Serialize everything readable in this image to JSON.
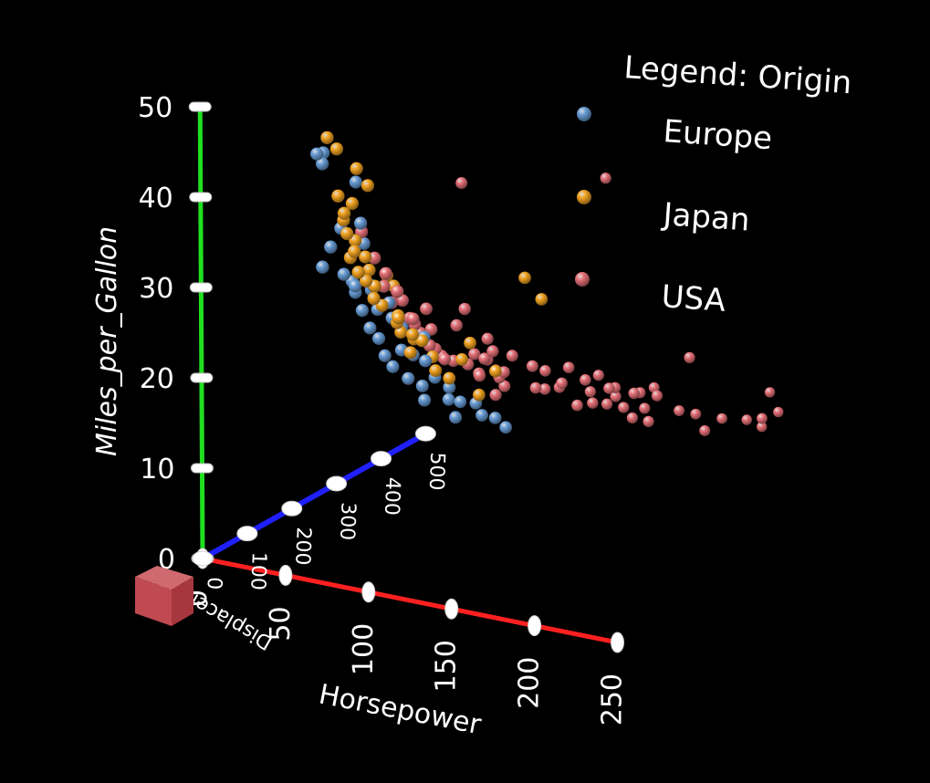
{
  "chart_data": {
    "type": "scatter",
    "dimensions": 3,
    "axes": {
      "x": {
        "label": "Horsepower",
        "range": [
          0,
          250
        ],
        "ticks": [
          "0",
          "50",
          "100",
          "150",
          "200",
          "250"
        ],
        "color": "#ff2020"
      },
      "y": {
        "label": "Miles_per_Gallon",
        "range": [
          0,
          50
        ],
        "ticks": [
          "0",
          "10",
          "20",
          "30",
          "40",
          "50"
        ],
        "color": "#20e020"
      },
      "z": {
        "label": "Displacement",
        "range": [
          0,
          500
        ],
        "ticks": [
          "0",
          "100",
          "200",
          "300",
          "400",
          "500"
        ],
        "color": "#2020ff"
      }
    },
    "legend": {
      "title": "Legend: Origin",
      "placement": "top-right",
      "entries": [
        {
          "name": "Europe",
          "color": "#6a9fd8"
        },
        {
          "name": "Japan",
          "color": "#f5a623"
        },
        {
          "name": "USA",
          "color": "#e8737a"
        }
      ]
    },
    "series": [
      {
        "name": "Europe",
        "points": [
          [
            46,
            44,
            90
          ],
          [
            49,
            43,
            91
          ],
          [
            48,
            44,
            97
          ],
          [
            52,
            32,
            79
          ],
          [
            54,
            34,
            90
          ],
          [
            58,
            36,
            98
          ],
          [
            60,
            31,
            97
          ],
          [
            62,
            30,
            108
          ],
          [
            65,
            29,
            104
          ],
          [
            67,
            30,
            96
          ],
          [
            68,
            27,
            108
          ],
          [
            70,
            29,
            121
          ],
          [
            71,
            25,
            114
          ],
          [
            74,
            27,
            120
          ],
          [
            76,
            24,
            115
          ],
          [
            78,
            22,
            121
          ],
          [
            80,
            26,
            130
          ],
          [
            83,
            21,
            120
          ],
          [
            85,
            25,
            134
          ],
          [
            88,
            23,
            121
          ],
          [
            90,
            22,
            140
          ],
          [
            92,
            20,
            121
          ],
          [
            95,
            24,
            146
          ],
          [
            97,
            19,
            134
          ],
          [
            100,
            22,
            130
          ],
          [
            102,
            18,
            120
          ],
          [
            103,
            20,
            140
          ],
          [
            105,
            17,
            163
          ],
          [
            110,
            19,
            146
          ],
          [
            112,
            17,
            163
          ],
          [
            115,
            16,
            141
          ],
          [
            120,
            17,
            168
          ],
          [
            125,
            16,
            163
          ],
          [
            133,
            16,
            163
          ],
          [
            138,
            15,
            168
          ],
          [
            64,
            41,
            110
          ],
          [
            70,
            37,
            98
          ],
          [
            66,
            34,
            120
          ],
          [
            75,
            30,
            107
          ],
          [
            81,
            28,
            120
          ]
        ]
      },
      {
        "name": "Japan",
        "points": [
          [
            52,
            46,
            91
          ],
          [
            58,
            45,
            90
          ],
          [
            60,
            40,
            85
          ],
          [
            62,
            38,
            91
          ],
          [
            65,
            39,
            98
          ],
          [
            65,
            36,
            86
          ],
          [
            67,
            35,
            97
          ],
          [
            68,
            34,
            91
          ],
          [
            70,
            33,
            108
          ],
          [
            72,
            32,
            85
          ],
          [
            75,
            31,
            91
          ],
          [
            75,
            32,
            98
          ],
          [
            76,
            30,
            107
          ],
          [
            78,
            29,
            97
          ],
          [
            80,
            28,
            108
          ],
          [
            84,
            30,
            119
          ],
          [
            88,
            27,
            114
          ],
          [
            88,
            25,
            120
          ],
          [
            90,
            27,
            107
          ],
          [
            92,
            24,
            134
          ],
          [
            94,
            23,
            119
          ],
          [
            95,
            25,
            120
          ],
          [
            97,
            24,
            134
          ],
          [
            100,
            22,
            146
          ],
          [
            105,
            21,
            134
          ],
          [
            110,
            20,
            146
          ],
          [
            115,
            22,
            156
          ],
          [
            120,
            24,
            156
          ],
          [
            122,
            18,
            168
          ],
          [
            132,
            21,
            168
          ],
          [
            68,
            43,
            97
          ],
          [
            72,
            41,
            107
          ],
          [
            60,
            37,
            97
          ],
          [
            64,
            33,
            97
          ],
          [
            80,
            31,
            119
          ],
          [
            86,
            26,
            119
          ],
          [
            150,
            32,
            168
          ],
          [
            160,
            30,
            168
          ]
        ]
      },
      {
        "name": "USA",
        "points": [
          [
            70,
            36,
            100
          ],
          [
            75,
            33,
            110
          ],
          [
            80,
            30,
            112
          ],
          [
            82,
            28,
            122
          ],
          [
            85,
            28,
            135
          ],
          [
            88,
            26,
            140
          ],
          [
            88,
            25,
            151
          ],
          [
            90,
            24,
            156
          ],
          [
            90,
            26,
            140
          ],
          [
            92,
            24,
            173
          ],
          [
            95,
            22,
            171
          ],
          [
            96,
            21,
            181
          ],
          [
            97,
            23,
            151
          ],
          [
            98,
            20,
            200
          ],
          [
            100,
            21,
            173
          ],
          [
            100,
            19,
            225
          ],
          [
            102,
            20,
            232
          ],
          [
            105,
            19,
            250
          ],
          [
            105,
            18,
            231
          ],
          [
            107,
            18,
            225
          ],
          [
            110,
            18,
            250
          ],
          [
            110,
            17,
            258
          ],
          [
            112,
            16,
            262
          ],
          [
            115,
            16,
            231
          ],
          [
            115,
            18,
            250
          ],
          [
            120,
            15,
            302
          ],
          [
            125,
            15,
            304
          ],
          [
            130,
            15,
            318
          ],
          [
            140,
            14,
            350
          ],
          [
            145,
            14,
            302
          ],
          [
            150,
            14,
            318
          ],
          [
            150,
            13,
            350
          ],
          [
            155,
            14,
            351
          ],
          [
            160,
            13,
            350
          ],
          [
            165,
            12,
            351
          ],
          [
            170,
            13,
            360
          ],
          [
            175,
            12,
            350
          ],
          [
            180,
            12,
            400
          ],
          [
            190,
            12,
            400
          ],
          [
            198,
            11,
            429
          ],
          [
            200,
            11,
            383
          ],
          [
            210,
            11,
            440
          ],
          [
            215,
            10,
            455
          ],
          [
            220,
            14,
            455
          ],
          [
            225,
            12,
            455
          ],
          [
            230,
            13,
            400
          ],
          [
            100,
            24,
            200
          ],
          [
            95,
            27,
            151
          ],
          [
            105,
            26,
            200
          ],
          [
            110,
            22,
            232
          ],
          [
            120,
            20,
            250
          ],
          [
            130,
            19,
            258
          ],
          [
            140,
            18,
            302
          ],
          [
            150,
            17,
            302
          ],
          [
            160,
            16,
            318
          ],
          [
            170,
            15,
            350
          ],
          [
            175,
            16,
            318
          ],
          [
            180,
            15,
            351
          ],
          [
            85,
            32,
            98
          ],
          [
            90,
            30,
            105
          ],
          [
            145,
            16,
            350
          ],
          [
            155,
            15,
            350
          ],
          [
            165,
            14,
            400
          ],
          [
            135,
            16,
            305
          ],
          [
            125,
            17,
            305
          ],
          [
            110,
            20,
            225
          ],
          [
            115,
            21,
            225
          ],
          [
            90,
            38,
            250
          ],
          [
            150,
            38,
            350
          ],
          [
            200,
            20,
            350
          ]
        ]
      }
    ]
  }
}
